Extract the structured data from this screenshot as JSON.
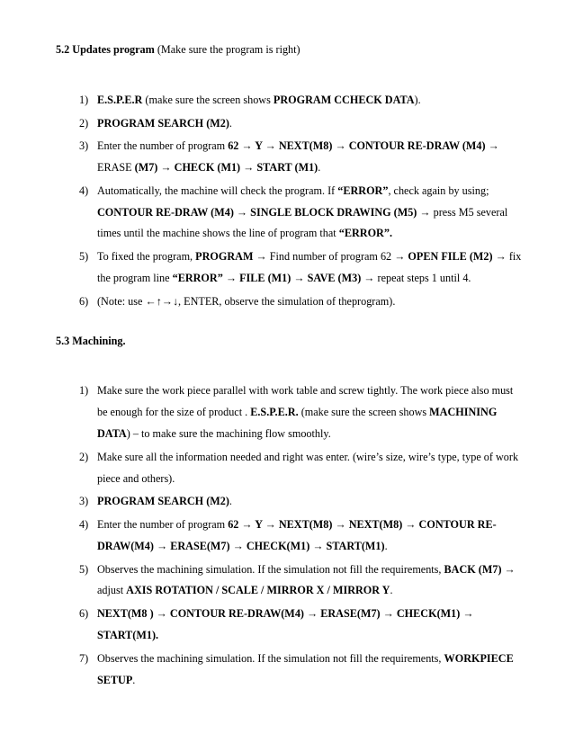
{
  "section1": {
    "number": "5.2",
    "title": "Updates program",
    "paren": " (Make sure the program is right)",
    "items": [
      {
        "marker": "1)",
        "html": "<span class='b'>E.S.P.E.R</span> (make sure the screen shows <span class='b'>PROGRAM CCHECK DATA</span>)."
      },
      {
        "marker": "2)",
        "html": "<span class='b'>PROGRAM SEARCH (M2)</span>."
      },
      {
        "marker": "3)",
        "html": "Enter the number of program <span class='b'>62 → Y → NEXT(M8) → CONTOUR RE-DRAW (M4) →</span> ERASE <span class='b'>(M7) → CHECK (M1) → START (M1)</span>."
      },
      {
        "marker": "4)",
        "html": "Automatically, the machine will check the program. If  <span class='b'>“ERROR”</span>, check again by using; <span class='b'>CONTOUR RE-DRAW (M4) → SINGLE BLOCK DRAWING (M5) →</span> press M5 several times until the machine shows the line of program that  <span class='b'>“ERROR”.</span>"
      },
      {
        "marker": "5)",
        "html": "To fixed the program, <span class='b'>PROGRAM →</span> Find number of program 62 <span class='b'>→ OPEN FILE (M2) →</span> fix the program line  <span class='b'>“ERROR” → FILE (M1) → SAVE (M3) →</span> repeat steps 1 until 4."
      },
      {
        "marker": "6)",
        "html": "(Note: use ←↑→↓, ENTER, observe the simulation of theprogram)."
      }
    ]
  },
  "section2": {
    "number": "5.3",
    "title": "Machining.",
    "items": [
      {
        "marker": "1)",
        "html": "Make sure the work piece parallel with work table and screw tightly. The work piece also must be enough for the size of product . <span class='b'>E.S.P.E.R.</span> (make sure the screen shows <span class='b'>MACHINING DATA</span>) – to make sure the machining flow smoothly."
      },
      {
        "marker": "2)",
        "html": "Make sure all the information needed and right was enter. (wire’s size, wire’s type, type of work piece and others)."
      },
      {
        "marker": "3)",
        "html": "<span class='b'>PROGRAM SEARCH (M2)</span>."
      },
      {
        "marker": "4)",
        "html": "Enter the number of program <span class='b'>62 → Y → NEXT(M8) → NEXT(M8) → CONTOUR RE-DRAW(M4) → ERASE(M7) → CHECK(M1) → START(M1)</span>."
      },
      {
        "marker": "5)",
        "html": "Observes the machining simulation. If the simulation not fill the requirements, <span class='b'>BACK (M7) →</span> adjust <span class='b'>AXIS ROTATION / SCALE / MIRROR X / MIRROR Y</span>."
      },
      {
        "marker": "6)",
        "html": "<span class='b'>NEXT(M8 ) → CONTOUR RE-DRAW(M4) → ERASE(M7) → CHECK(M1) → START(M1).</span>"
      },
      {
        "marker": "7)",
        "html": "Observes the machining simulation. If the simulation not fill the requirements, <span class='b'>WORKPIECE SETUP</span>."
      }
    ]
  }
}
